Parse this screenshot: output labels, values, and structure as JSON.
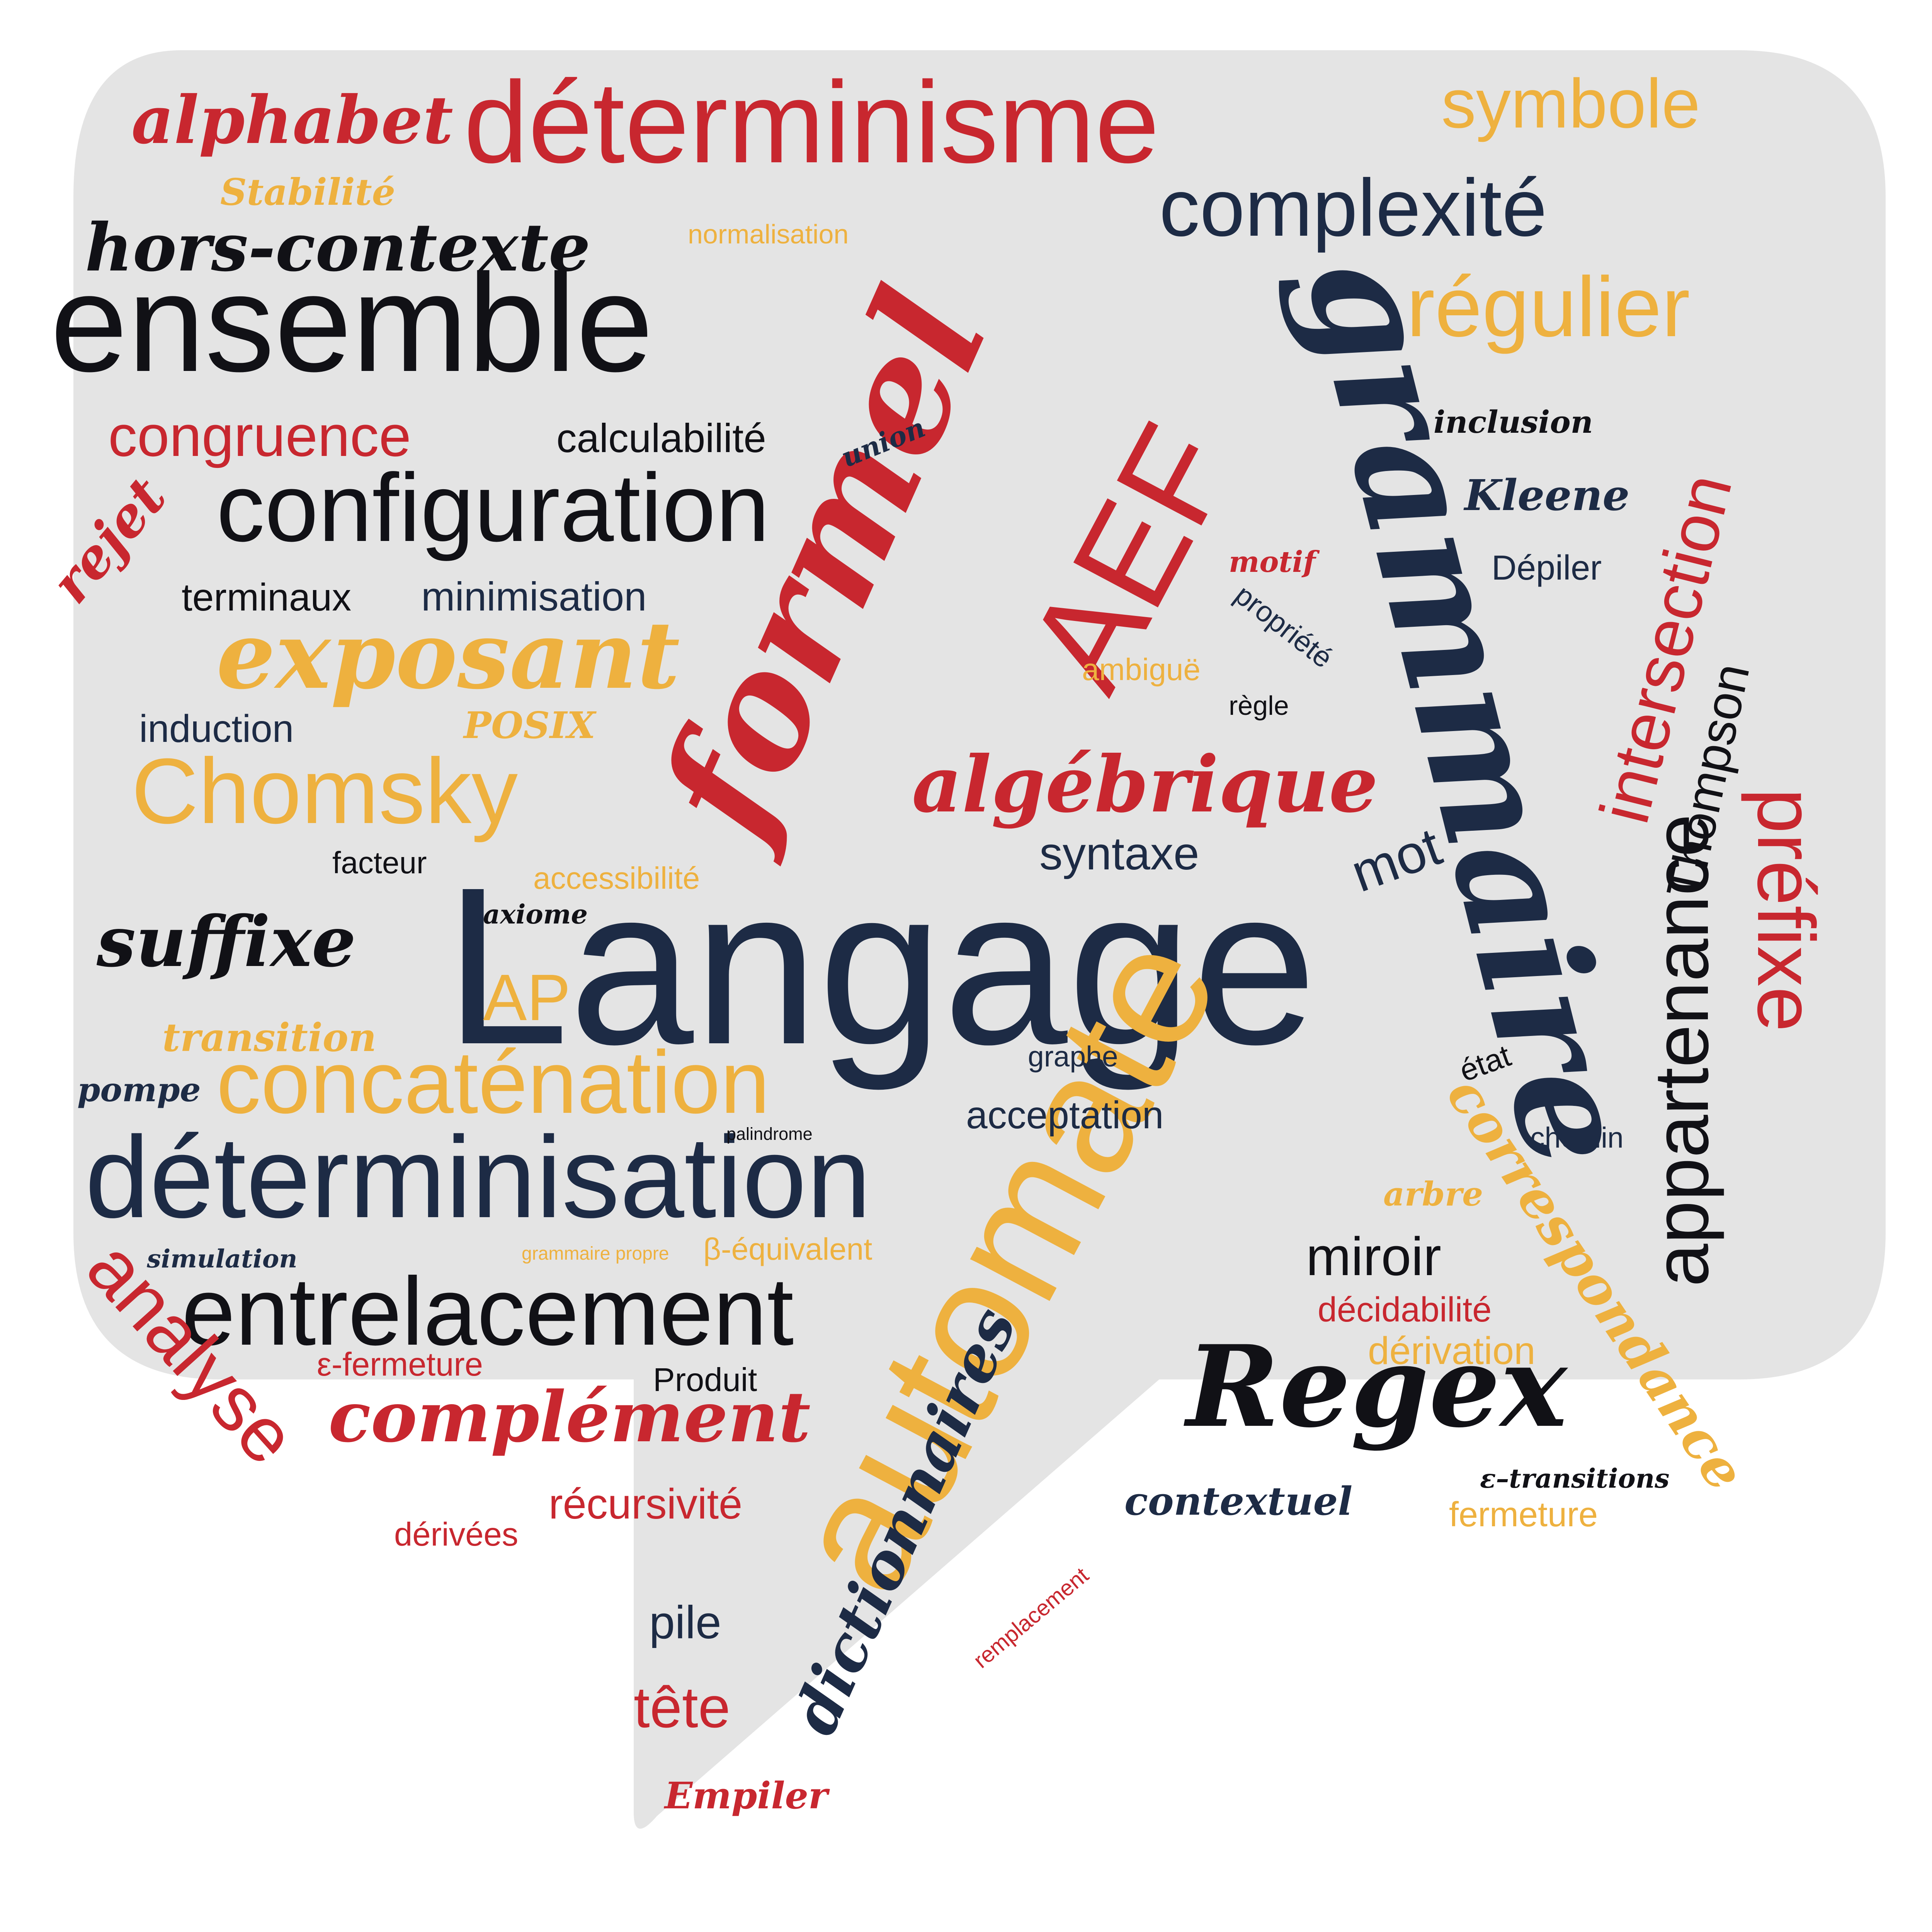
{
  "colors": {
    "bubble": "#e4e4e4",
    "bubble_edge": "#d2d2d2",
    "red": "#c8272f",
    "navy": "#1d2b45",
    "black": "#111116",
    "gold": "#eeb13f"
  },
  "words": {
    "langage": "Langage",
    "grammaire": "grammaire",
    "formel": "formel",
    "automate": "automate",
    "aef": "AEF",
    "ensemble": "ensemble",
    "determinisation": "déterminisation",
    "determinisme": "déterminisme",
    "regex": "Regex",
    "entrelacement": "entrelacement",
    "configuration": "configuration",
    "algebrique": "algébrique",
    "exposant": "exposant",
    "chomsky": "Chomsky",
    "concatenation": "concaténation",
    "complexite": "complexité",
    "regulier": "régulier",
    "hors_contexte": "hors-contexte",
    "alphabet": "alphabet",
    "symbole": "symbole",
    "complement": "complément",
    "suffixe": "suffixe",
    "appartenance": "appartenance",
    "intersection": "intersection",
    "prefixe": "préfixe",
    "analyse": "analyse",
    "dictionnaires": "dictionnaires",
    "correspondance": "correspondance",
    "thompson": "Thompson",
    "congruence": "congruence",
    "miroir": "miroir",
    "calculabilite": "calculabilité",
    "minimisation": "minimisation",
    "terminaux": "terminaux",
    "rejet": "rejet",
    "stabilite": "Stabilité",
    "normalisation": "normalisation",
    "union": "union",
    "inclusion": "inclusion",
    "kleene": "Kleene",
    "depiler": "Dépiler",
    "motif": "motif",
    "propriete": "propriété",
    "ambigue": "ambiguë",
    "regle": "règle",
    "induction": "induction",
    "posix": "POSIX",
    "facteur": "facteur",
    "accessibilite": "accessibilité",
    "syntaxe": "syntaxe",
    "mot": "mot",
    "axiome": "axiome",
    "ap": "AP",
    "transition": "transition",
    "pompe": "pompe",
    "graphe": "graphe",
    "etat": "état",
    "palindrome": "palindrome",
    "acceptation": "acceptation",
    "chemin": "chemin",
    "arbre": "arbre",
    "simulation": "simulation",
    "grammaire_propre": "grammaire propre",
    "beta_equivalent": "β-équivalent",
    "decidabilite": "décidabilité",
    "derivation": "dérivation",
    "epsilon_fermeture": "ε-fermeture",
    "produit": "Produit",
    "recursivite": "récursivité",
    "derivees": "dérivées",
    "contextuel": "contextuel",
    "epsilon_transitions": "ε–transitions",
    "fermeture": "fermeture",
    "remplacement": "remplacement",
    "pile": "pile",
    "tete": "tête",
    "empiler": "Empiler"
  }
}
